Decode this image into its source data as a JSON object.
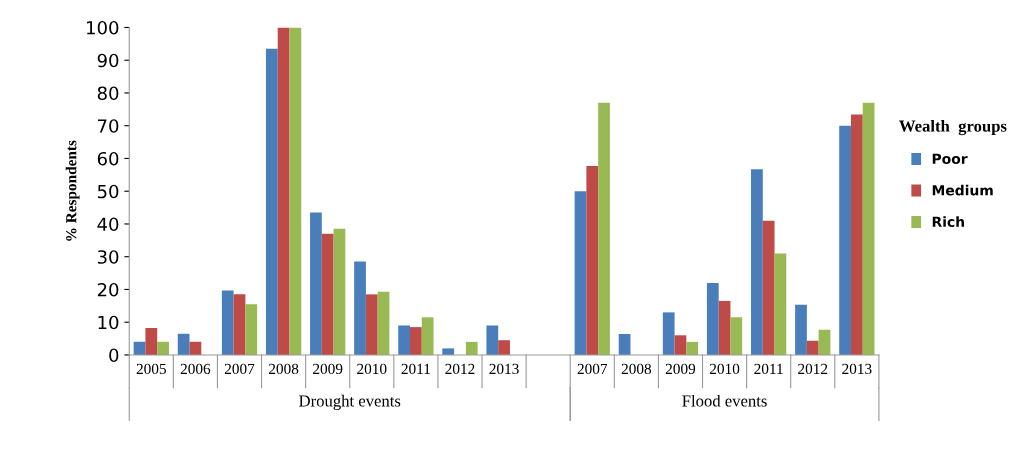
{
  "chart_data": {
    "type": "bar",
    "ylabel": "% Respondents",
    "legend_title": "Wealth  groups",
    "categories": [
      "2005",
      "2006",
      "2007",
      "2008",
      "2009",
      "2010",
      "2011",
      "2012",
      "2013",
      null,
      "2007",
      "2008",
      "2009",
      "2010",
      "2011",
      "2012",
      "2013"
    ],
    "series": [
      {
        "name": "Poor",
        "color": "#4a7ebb",
        "values": [
          4,
          6.5,
          19.7,
          93.5,
          43.5,
          28.5,
          9,
          2,
          9,
          null,
          50,
          6.4,
          13,
          22,
          56.7,
          15.3,
          70
        ]
      },
      {
        "name": "Medium",
        "color": "#be4b48",
        "values": [
          8.2,
          4,
          18.5,
          100,
          37,
          18.5,
          8.5,
          0,
          4.5,
          null,
          57.7,
          0,
          6,
          16.5,
          41,
          4.3,
          73.4
        ]
      },
      {
        "name": "Rich",
        "color": "#98b954",
        "values": [
          4,
          0,
          15.5,
          100,
          38.5,
          19.3,
          11.5,
          4,
          0,
          null,
          77,
          0,
          4,
          11.5,
          31,
          7.7,
          77
        ]
      }
    ],
    "ylim": [
      0,
      100
    ],
    "yticks": [
      0,
      10,
      20,
      30,
      40,
      50,
      60,
      70,
      80,
      90,
      100
    ],
    "grid": false,
    "legend": "right",
    "annotations": [
      "Drought events",
      "Flood events"
    ]
  }
}
